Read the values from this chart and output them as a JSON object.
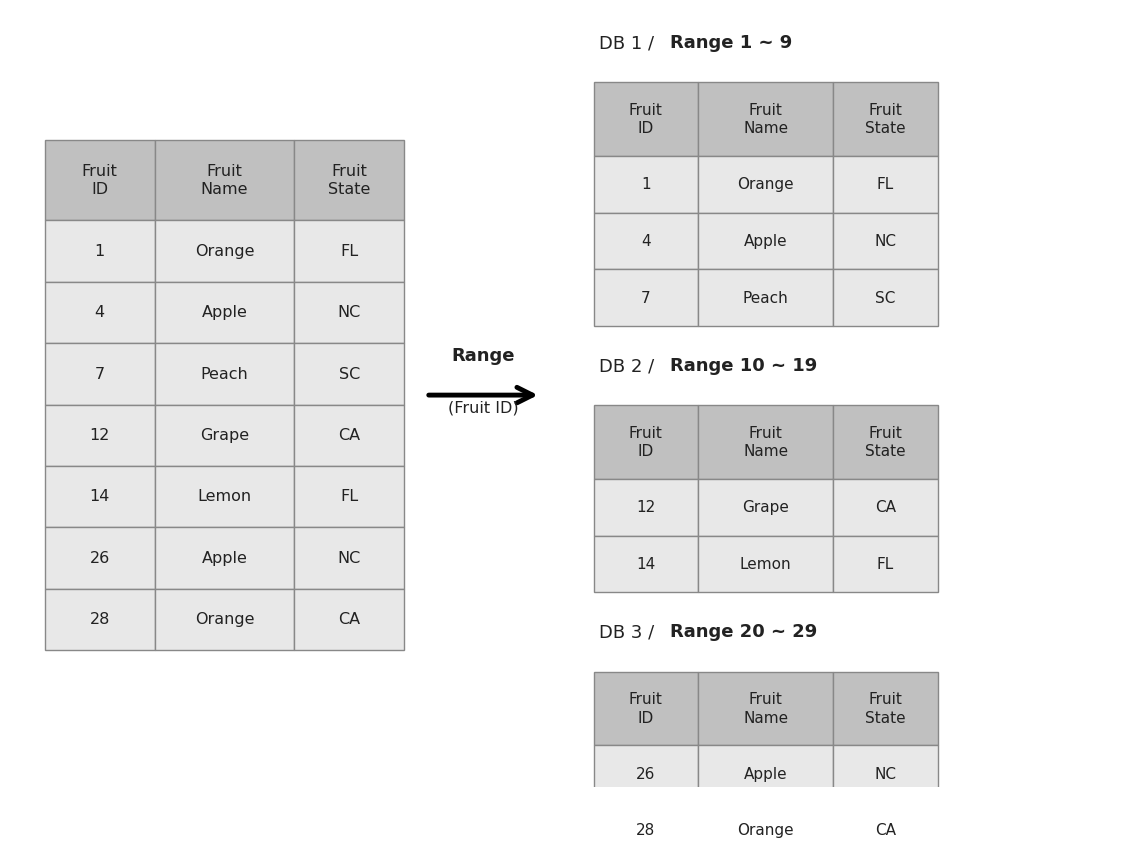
{
  "background_color": "#ffffff",
  "header_color": "#c0c0c0",
  "row_color": "#e8e8e8",
  "border_color": "#888888",
  "text_color": "#222222",
  "main_table": {
    "headers": [
      "Fruit\nID",
      "Fruit\nName",
      "Fruit\nState"
    ],
    "rows": [
      [
        "1",
        "Orange",
        "FL"
      ],
      [
        "4",
        "Apple",
        "NC"
      ],
      [
        "7",
        "Peach",
        "SC"
      ],
      [
        "12",
        "Grape",
        "CA"
      ],
      [
        "14",
        "Lemon",
        "FL"
      ],
      [
        "26",
        "Apple",
        "NC"
      ],
      [
        "28",
        "Orange",
        "CA"
      ]
    ]
  },
  "db1": {
    "title_normal": "DB 1 / ",
    "title_bold": "Range 1 ~ 9",
    "headers": [
      "Fruit\nID",
      "Fruit\nName",
      "Fruit\nState"
    ],
    "rows": [
      [
        "1",
        "Orange",
        "FL"
      ],
      [
        "4",
        "Apple",
        "NC"
      ],
      [
        "7",
        "Peach",
        "SC"
      ]
    ]
  },
  "db2": {
    "title_normal": "DB 2 / ",
    "title_bold": "Range 10 ~ 19",
    "headers": [
      "Fruit\nID",
      "Fruit\nName",
      "Fruit\nState"
    ],
    "rows": [
      [
        "12",
        "Grape",
        "CA"
      ],
      [
        "14",
        "Lemon",
        "FL"
      ]
    ]
  },
  "db3": {
    "title_normal": "DB 3 / ",
    "title_bold": "Range 20 ~ 29",
    "headers": [
      "Fruit\nID",
      "Fruit\nName",
      "Fruit\nState"
    ],
    "rows": [
      [
        "26",
        "Apple",
        "NC"
      ],
      [
        "28",
        "Orange",
        "CA"
      ]
    ]
  },
  "arrow_label_bold": "Range",
  "arrow_label_normal": "(Fruit ID)"
}
